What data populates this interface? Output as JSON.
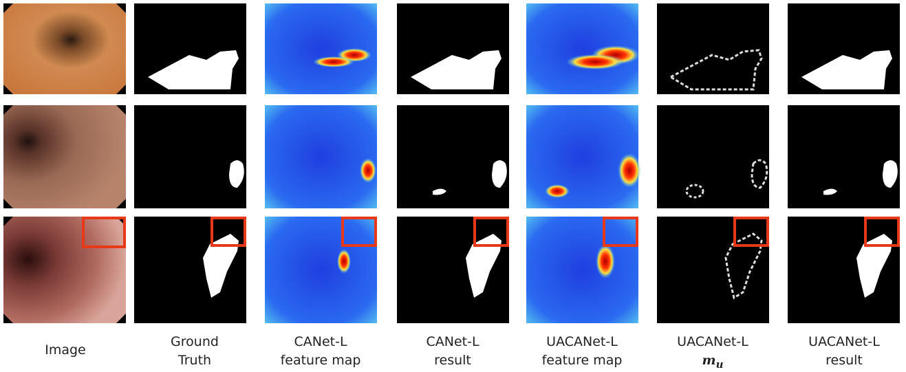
{
  "columns": [
    {
      "lines": [
        "Image"
      ]
    },
    {
      "lines": [
        "Ground",
        "Truth"
      ]
    },
    {
      "lines": [
        "CANet-L",
        "feature map"
      ]
    },
    {
      "lines": [
        "CANet-L",
        "result"
      ]
    },
    {
      "lines": [
        "UACANet-L",
        "feature map"
      ]
    },
    {
      "lines": [
        "UACANet-L"
      ],
      "symbol": "m",
      "subscript": "u"
    },
    {
      "lines": [
        "UACANet-L",
        "result"
      ]
    }
  ]
}
